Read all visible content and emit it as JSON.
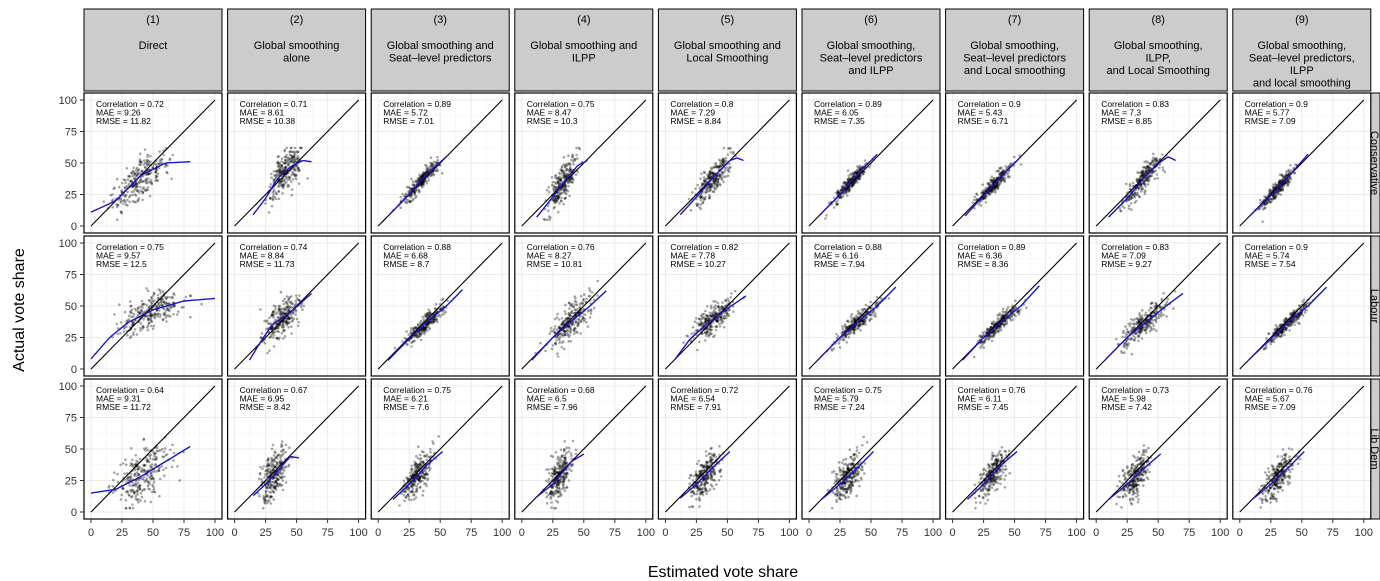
{
  "figure": {
    "xlabel": "Estimated vote share",
    "ylabel": "Actual vote share",
    "columns": [
      {
        "number": "(1)",
        "title_lines": [
          "Direct"
        ]
      },
      {
        "number": "(2)",
        "title_lines": [
          "Global smoothing",
          "alone"
        ]
      },
      {
        "number": "(3)",
        "title_lines": [
          "Global smoothing and",
          "Seat–level predictors"
        ]
      },
      {
        "number": "(4)",
        "title_lines": [
          "Global smoothing and",
          "ILPP"
        ]
      },
      {
        "number": "(5)",
        "title_lines": [
          "Global smoothing and",
          "Local Smoothing"
        ]
      },
      {
        "number": "(6)",
        "title_lines": [
          "Global smoothing,",
          "Seat–level predictors",
          "and ILPP"
        ]
      },
      {
        "number": "(7)",
        "title_lines": [
          "Global smoothing,",
          "Seat–level predictors",
          "and Local smoothing"
        ]
      },
      {
        "number": "(8)",
        "title_lines": [
          "Global smoothing,",
          "ILPP,",
          "and Local Smoothing"
        ]
      },
      {
        "number": "(9)",
        "title_lines": [
          "Global smoothing,",
          "Seat–level predictors,",
          "ILPP",
          "and local smoothing"
        ]
      }
    ],
    "rows": [
      "Conservative",
      "Labour",
      "Lib Dem"
    ],
    "colors": {
      "strip_bg": "#cccccc",
      "points": "#000000",
      "fit_line": "#1515cc",
      "identity_line": "#000000",
      "grid": "#ebebeb"
    }
  },
  "chart_data": {
    "type": "scatter",
    "facet_rows": [
      "Conservative",
      "Labour",
      "Lib Dem"
    ],
    "xlim": [
      0,
      100
    ],
    "ylim": [
      0,
      100
    ],
    "xticks": [
      0,
      25,
      50,
      75,
      100
    ],
    "yticks": [
      0,
      25,
      50,
      75,
      100
    ],
    "grid": true,
    "reference_line": "y = x",
    "smoother": "loess",
    "panels": [
      [
        {
          "stats": [
            "Correlation = 0.72",
            "MAE = 9.26",
            "RMSE = 11.82"
          ],
          "x_range": [
            0,
            80
          ],
          "y_range": [
            5,
            62
          ],
          "fit": [
            [
              0,
              11
            ],
            [
              20,
              20
            ],
            [
              40,
              40
            ],
            [
              60,
              50
            ],
            [
              80,
              51
            ]
          ]
        },
        {
          "stats": [
            "Correlation = 0.71",
            "MAE = 8.61",
            "RMSE = 10.38"
          ],
          "x_range": [
            15,
            65
          ],
          "y_range": [
            5,
            62
          ],
          "fit": [
            [
              15,
              9
            ],
            [
              25,
              22
            ],
            [
              35,
              38
            ],
            [
              45,
              47
            ],
            [
              55,
              52
            ],
            [
              62,
              51
            ]
          ]
        },
        {
          "stats": [
            "Correlation = 0.89",
            "MAE = 5.72",
            "RMSE = 7.01"
          ],
          "x_range": [
            8,
            62
          ],
          "y_range": [
            2,
            60
          ],
          "fit": [
            [
              10,
              10
            ],
            [
              25,
              25
            ],
            [
              40,
              42
            ],
            [
              55,
              55
            ]
          ]
        },
        {
          "stats": [
            "Correlation = 0.75",
            "MAE = 8.47",
            "RMSE = 10.3"
          ],
          "x_range": [
            12,
            55
          ],
          "y_range": [
            5,
            62
          ],
          "fit": [
            [
              12,
              7
            ],
            [
              25,
              23
            ],
            [
              35,
              36
            ],
            [
              45,
              48
            ],
            [
              53,
              52
            ]
          ]
        },
        {
          "stats": [
            "Correlation = 0.8",
            "MAE = 7.29",
            "RMSE = 8.84"
          ],
          "x_range": [
            10,
            65
          ],
          "y_range": [
            5,
            62
          ],
          "fit": [
            [
              12,
              9
            ],
            [
              25,
              23
            ],
            [
              40,
              40
            ],
            [
              52,
              52
            ],
            [
              58,
              54
            ],
            [
              63,
              52
            ]
          ]
        },
        {
          "stats": [
            "Correlation = 0.89",
            "MAE = 6.05",
            "RMSE = 7.35"
          ],
          "x_range": [
            8,
            60
          ],
          "y_range": [
            2,
            60
          ],
          "fit": [
            [
              8,
              8
            ],
            [
              25,
              25
            ],
            [
              40,
              42
            ],
            [
              55,
              57
            ]
          ]
        },
        {
          "stats": [
            "Correlation = 0.9",
            "MAE = 5.43",
            "RMSE = 6.71"
          ],
          "x_range": [
            8,
            60
          ],
          "y_range": [
            2,
            60
          ],
          "fit": [
            [
              10,
              8
            ],
            [
              25,
              24
            ],
            [
              40,
              40
            ],
            [
              55,
              55
            ]
          ]
        },
        {
          "stats": [
            "Correlation = 0.83",
            "MAE = 7.3",
            "RMSE = 8.85"
          ],
          "x_range": [
            10,
            65
          ],
          "y_range": [
            3,
            62
          ],
          "fit": [
            [
              10,
              7
            ],
            [
              25,
              22
            ],
            [
              40,
              40
            ],
            [
              52,
              51
            ],
            [
              58,
              55
            ],
            [
              64,
              52
            ]
          ]
        },
        {
          "stats": [
            "Correlation = 0.9",
            "MAE = 5.77",
            "RMSE = 7.09"
          ],
          "x_range": [
            5,
            58
          ],
          "y_range": [
            2,
            60
          ],
          "fit": [
            [
              8,
              8
            ],
            [
              25,
              24
            ],
            [
              40,
              40
            ],
            [
              55,
              57
            ]
          ]
        }
      ],
      [
        {
          "stats": [
            "Correlation = 0.75",
            "MAE = 9.57",
            "RMSE = 12.5"
          ],
          "x_range": [
            0,
            100
          ],
          "y_range": [
            5,
            75
          ],
          "fit": [
            [
              0,
              8
            ],
            [
              15,
              25
            ],
            [
              30,
              37
            ],
            [
              50,
              47
            ],
            [
              75,
              54
            ],
            [
              100,
              56
            ]
          ]
        },
        {
          "stats": [
            "Correlation = 0.74",
            "MAE = 8.84",
            "RMSE = 11.73"
          ],
          "x_range": [
            12,
            65
          ],
          "y_range": [
            2,
            75
          ],
          "fit": [
            [
              12,
              7
            ],
            [
              20,
              20
            ],
            [
              30,
              35
            ],
            [
              45,
              45
            ],
            [
              62,
              60
            ]
          ]
        },
        {
          "stats": [
            "Correlation = 0.88",
            "MAE = 6.68",
            "RMSE = 8.7"
          ],
          "x_range": [
            8,
            70
          ],
          "y_range": [
            2,
            72
          ],
          "fit": [
            [
              8,
              7
            ],
            [
              25,
              24
            ],
            [
              40,
              38
            ],
            [
              55,
              50
            ],
            [
              68,
              63
            ]
          ]
        },
        {
          "stats": [
            "Correlation = 0.76",
            "MAE = 8.27",
            "RMSE = 10.81"
          ],
          "x_range": [
            8,
            70
          ],
          "y_range": [
            2,
            75
          ],
          "fit": [
            [
              8,
              7
            ],
            [
              25,
              25
            ],
            [
              40,
              38
            ],
            [
              55,
              50
            ],
            [
              68,
              62
            ]
          ]
        },
        {
          "stats": [
            "Correlation = 0.82",
            "MAE = 7.78",
            "RMSE = 10.27"
          ],
          "x_range": [
            8,
            70
          ],
          "y_range": [
            2,
            75
          ],
          "fit": [
            [
              8,
              8
            ],
            [
              20,
              24
            ],
            [
              35,
              37
            ],
            [
              50,
              48
            ],
            [
              65,
              58
            ]
          ]
        },
        {
          "stats": [
            "Correlation = 0.88",
            "MAE = 6.16",
            "RMSE = 7.94"
          ],
          "x_range": [
            5,
            75
          ],
          "y_range": [
            2,
            75
          ],
          "fit": [
            [
              8,
              8
            ],
            [
              25,
              25
            ],
            [
              40,
              38
            ],
            [
              55,
              50
            ],
            [
              70,
              65
            ]
          ]
        },
        {
          "stats": [
            "Correlation = 0.89",
            "MAE = 6.36",
            "RMSE = 8.36"
          ],
          "x_range": [
            5,
            70
          ],
          "y_range": [
            2,
            75
          ],
          "fit": [
            [
              8,
              7
            ],
            [
              25,
              25
            ],
            [
              40,
              38
            ],
            [
              55,
              50
            ],
            [
              70,
              66
            ]
          ]
        },
        {
          "stats": [
            "Correlation = 0.83",
            "MAE = 7.09",
            "RMSE = 9.27"
          ],
          "x_range": [
            5,
            75
          ],
          "y_range": [
            2,
            75
          ],
          "fit": [
            [
              8,
              8
            ],
            [
              25,
              25
            ],
            [
              40,
              37
            ],
            [
              55,
              49
            ],
            [
              70,
              60
            ]
          ]
        },
        {
          "stats": [
            "Correlation = 0.9",
            "MAE = 5.74",
            "RMSE = 7.54"
          ],
          "x_range": [
            5,
            75
          ],
          "y_range": [
            2,
            75
          ],
          "fit": [
            [
              8,
              8
            ],
            [
              25,
              24
            ],
            [
              40,
              38
            ],
            [
              55,
              50
            ],
            [
              70,
              65
            ]
          ]
        }
      ],
      [
        {
          "stats": [
            "Correlation = 0.64",
            "MAE = 9.31",
            "RMSE = 11.72"
          ],
          "x_range": [
            0,
            82
          ],
          "y_range": [
            3,
            62
          ],
          "fit": [
            [
              0,
              15
            ],
            [
              20,
              18
            ],
            [
              40,
              28
            ],
            [
              60,
              40
            ],
            [
              80,
              52
            ]
          ]
        },
        {
          "stats": [
            "Correlation = 0.67",
            "MAE = 6.95",
            "RMSE = 8.42"
          ],
          "x_range": [
            12,
            52
          ],
          "y_range": [
            3,
            60
          ],
          "fit": [
            [
              15,
              13
            ],
            [
              25,
              22
            ],
            [
              35,
              33
            ],
            [
              45,
              44
            ],
            [
              52,
              43
            ]
          ]
        },
        {
          "stats": [
            "Correlation = 0.75",
            "MAE = 6.21",
            "RMSE = 7.6"
          ],
          "x_range": [
            10,
            55
          ],
          "y_range": [
            3,
            60
          ],
          "fit": [
            [
              12,
              10
            ],
            [
              25,
              22
            ],
            [
              40,
              38
            ],
            [
              52,
              48
            ]
          ]
        },
        {
          "stats": [
            "Correlation = 0.68",
            "MAE = 6.5",
            "RMSE = 7.96"
          ],
          "x_range": [
            10,
            52
          ],
          "y_range": [
            3,
            58
          ],
          "fit": [
            [
              12,
              12
            ],
            [
              25,
              22
            ],
            [
              40,
              40
            ],
            [
              50,
              46
            ]
          ]
        },
        {
          "stats": [
            "Correlation = 0.72",
            "MAE = 6.54",
            "RMSE = 7.91"
          ],
          "x_range": [
            10,
            55
          ],
          "y_range": [
            3,
            58
          ],
          "fit": [
            [
              12,
              11
            ],
            [
              25,
              22
            ],
            [
              40,
              37
            ],
            [
              52,
              48
            ]
          ]
        },
        {
          "stats": [
            "Correlation = 0.75",
            "MAE = 5.79",
            "RMSE = 7.24"
          ],
          "x_range": [
            10,
            55
          ],
          "y_range": [
            3,
            60
          ],
          "fit": [
            [
              10,
              10
            ],
            [
              25,
              22
            ],
            [
              40,
              36
            ],
            [
              52,
              48
            ]
          ]
        },
        {
          "stats": [
            "Correlation = 0.76",
            "MAE = 6.11",
            "RMSE = 7.45"
          ],
          "x_range": [
            10,
            55
          ],
          "y_range": [
            3,
            60
          ],
          "fit": [
            [
              12,
              10
            ],
            [
              25,
              22
            ],
            [
              40,
              38
            ],
            [
              52,
              48
            ]
          ]
        },
        {
          "stats": [
            "Correlation = 0.73",
            "MAE = 5.98",
            "RMSE = 7.42"
          ],
          "x_range": [
            10,
            55
          ],
          "y_range": [
            3,
            58
          ],
          "fit": [
            [
              10,
              10
            ],
            [
              25,
              22
            ],
            [
              40,
              36
            ],
            [
              52,
              46
            ]
          ]
        },
        {
          "stats": [
            "Correlation = 0.76",
            "MAE = 5.67",
            "RMSE = 7.09"
          ],
          "x_range": [
            10,
            55
          ],
          "y_range": [
            3,
            60
          ],
          "fit": [
            [
              10,
              10
            ],
            [
              25,
              22
            ],
            [
              40,
              36
            ],
            [
              52,
              48
            ]
          ]
        }
      ]
    ]
  }
}
